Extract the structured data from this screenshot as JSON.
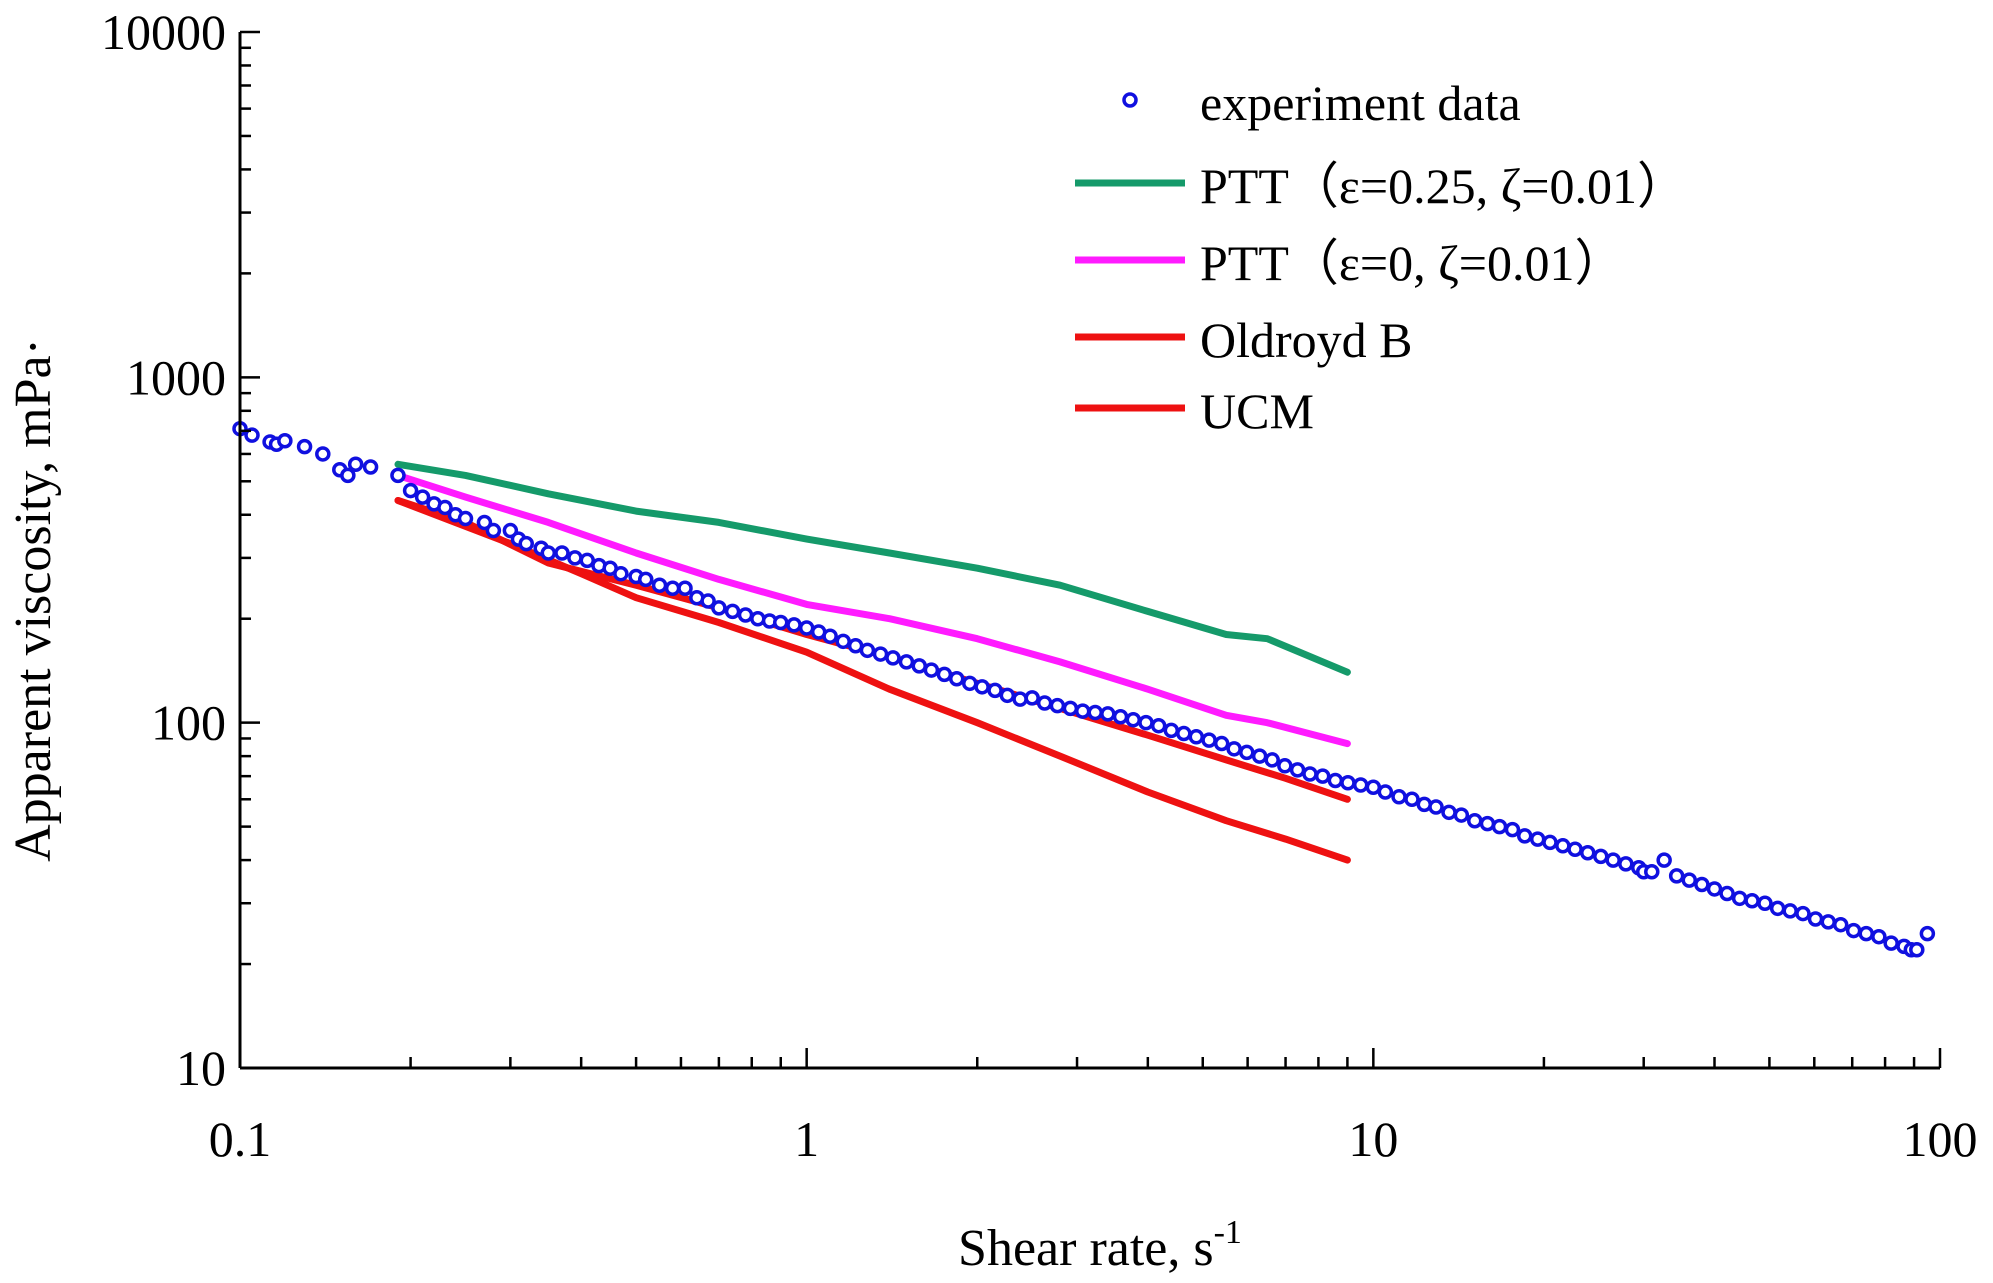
{
  "chart_data": {
    "type": "line",
    "xscale": "log",
    "yscale": "log",
    "xlim": [
      0.1,
      100
    ],
    "ylim": [
      10,
      10000
    ],
    "xlabel": "Shear rate, s",
    "xlabel_sup": "-1",
    "ylabel": "Apparent viscosity, mPa·",
    "x_ticks": [
      0.1,
      1,
      10,
      100
    ],
    "x_tick_labels": [
      "0.1",
      "1",
      "10",
      "100"
    ],
    "y_ticks": [
      10,
      100,
      1000,
      10000
    ],
    "y_tick_labels": [
      "10",
      "100",
      "1000",
      "10000"
    ],
    "legend_position": "top-right",
    "colors": {
      "experiment": "#1010e0",
      "ptt_025": "#159a6a",
      "ptt_0": "#ff1bff",
      "oldroyd": "#ee1111",
      "ucm": "#ee1111",
      "axis": "#000000"
    },
    "experiment": {
      "name": "experiment data",
      "x": [
        0.1,
        0.105,
        0.113,
        0.116,
        0.12,
        0.13,
        0.14,
        0.15,
        0.155,
        0.16,
        0.17,
        0.19,
        0.2,
        0.21,
        0.22,
        0.23,
        0.24,
        0.25,
        0.27,
        0.28,
        0.3,
        0.31,
        0.32,
        0.34,
        0.35,
        0.37,
        0.39,
        0.41,
        0.43,
        0.45,
        0.47,
        0.5,
        0.52,
        0.55,
        0.58,
        0.61,
        0.64,
        0.67,
        0.7,
        0.74,
        0.78,
        0.82,
        0.86,
        0.9,
        0.95,
        1.0,
        1.05,
        1.1,
        1.16,
        1.22,
        1.28,
        1.35,
        1.42,
        1.5,
        1.58,
        1.66,
        1.75,
        1.84,
        1.94,
        2.04,
        2.15,
        2.26,
        2.38,
        2.5,
        2.63,
        2.77,
        2.92,
        3.07,
        3.23,
        3.4,
        3.58,
        3.77,
        3.97,
        4.18,
        4.4,
        4.63,
        4.87,
        5.13,
        5.4,
        5.68,
        5.98,
        6.3,
        6.63,
        6.98,
        7.35,
        7.73,
        8.14,
        8.57,
        9.02,
        9.5,
        10.0,
        10.5,
        11.1,
        11.7,
        12.3,
        12.9,
        13.6,
        14.3,
        15.1,
        15.9,
        16.7,
        17.6,
        18.5,
        19.5,
        20.5,
        21.6,
        22.7,
        23.9,
        25.2,
        26.5,
        27.9,
        29.4,
        30.0,
        31.0,
        32.6,
        34.3,
        36.1,
        38.0,
        40.0,
        42.1,
        44.3,
        46.6,
        49.1,
        51.7,
        54.4,
        57.3,
        60.3,
        63.5,
        66.8,
        70.4,
        74.1,
        78.0,
        82.0,
        86.4,
        89.0,
        91.0,
        95.0
      ],
      "y": [
        710,
        680,
        650,
        640,
        655,
        630,
        600,
        540,
        520,
        560,
        550,
        520,
        470,
        450,
        430,
        420,
        400,
        390,
        380,
        360,
        360,
        340,
        330,
        320,
        310,
        310,
        300,
        295,
        285,
        280,
        270,
        265,
        260,
        250,
        245,
        245,
        230,
        225,
        215,
        210,
        205,
        200,
        197,
        195,
        192,
        188,
        183,
        178,
        172,
        167,
        162,
        158,
        154,
        150,
        146,
        142,
        138,
        134,
        130,
        127,
        124,
        120,
        117,
        118,
        114,
        112,
        110,
        108,
        107,
        106,
        104,
        102,
        100,
        98,
        95,
        93,
        91,
        89,
        87,
        84,
        82,
        80,
        78,
        75,
        73,
        71,
        70,
        68,
        67,
        66,
        65,
        63,
        61,
        60,
        58,
        57,
        55,
        54,
        52,
        51,
        50,
        49,
        47,
        46,
        45,
        44,
        43,
        42,
        41,
        40,
        39,
        38,
        37,
        37,
        40,
        36,
        35,
        34,
        33,
        32,
        31,
        30.5,
        30,
        29,
        28.5,
        28,
        27,
        26.5,
        26,
        25,
        24.5,
        24,
        23,
        22.5,
        22,
        22,
        24.5
      ]
    },
    "series": [
      {
        "name": "PTT（ε=0.25, ζ=0.01）",
        "color_key": "ptt_025",
        "x": [
          0.19,
          0.25,
          0.35,
          0.5,
          0.7,
          1.0,
          1.4,
          2.0,
          2.8,
          4.0,
          5.5,
          6.5,
          9.0
        ],
        "y": [
          560,
          520,
          460,
          410,
          380,
          340,
          310,
          280,
          250,
          210,
          180,
          175,
          140
        ]
      },
      {
        "name": "PTT（ε=0, ζ=0.01）",
        "color_key": "ptt_0",
        "x": [
          0.19,
          0.25,
          0.35,
          0.5,
          0.7,
          1.0,
          1.4,
          2.0,
          2.8,
          4.0,
          5.5,
          6.5,
          9.0
        ],
        "y": [
          520,
          450,
          380,
          310,
          260,
          220,
          200,
          175,
          150,
          125,
          105,
          100,
          87
        ]
      },
      {
        "name": "Oldroyd B",
        "color_key": "oldroyd",
        "x": [
          0.19,
          0.25,
          0.35,
          0.5,
          0.7,
          1.0,
          1.4,
          2.0,
          2.8,
          4.0,
          5.5,
          7.0,
          9.0
        ],
        "y": [
          440,
          380,
          290,
          250,
          215,
          180,
          155,
          130,
          110,
          92,
          78,
          69,
          60
        ]
      },
      {
        "name": "UCM",
        "color_key": "ucm",
        "x": [
          0.19,
          0.25,
          0.3,
          0.4,
          0.5,
          0.7,
          1.0,
          1.4,
          2.0,
          2.8,
          4.0,
          5.5,
          7.0,
          9.0
        ],
        "y": [
          440,
          370,
          330,
          270,
          230,
          195,
          160,
          125,
          100,
          80,
          63,
          52,
          46,
          40
        ]
      }
    ]
  }
}
